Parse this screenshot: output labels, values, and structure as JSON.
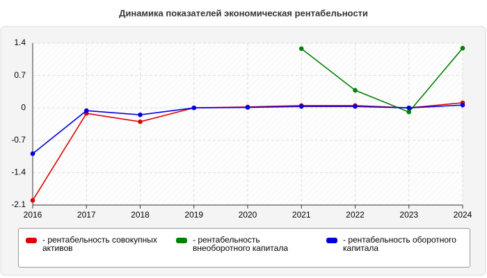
{
  "chart_data": {
    "type": "line",
    "title": "Динамика показателей экономическая рентабельности",
    "categories": [
      "2016",
      "2017",
      "2018",
      "2019",
      "2020",
      "2021",
      "2022",
      "2023",
      "2024"
    ],
    "series": [
      {
        "name": "- рентабельность совокупных активов",
        "color": "#e00000",
        "values": [
          -2.0,
          -0.12,
          -0.3,
          0.0,
          0.02,
          0.05,
          0.05,
          0.0,
          0.11
        ]
      },
      {
        "name": "- рентабельность внеоборотного капитала",
        "color": "#008000",
        "values": [
          null,
          null,
          null,
          null,
          null,
          1.28,
          0.38,
          -0.09,
          1.29
        ]
      },
      {
        "name": "- рентабельность оборотного капитала",
        "color": "#0000e0",
        "values": [
          -0.99,
          -0.06,
          -0.15,
          0.0,
          0.01,
          0.03,
          0.03,
          0.0,
          0.06
        ]
      }
    ],
    "ylim": [
      -2.1,
      1.4
    ],
    "yticks": [
      1.4,
      0.7,
      0,
      -0.7,
      -1.4,
      -2.1
    ],
    "grid": true
  }
}
